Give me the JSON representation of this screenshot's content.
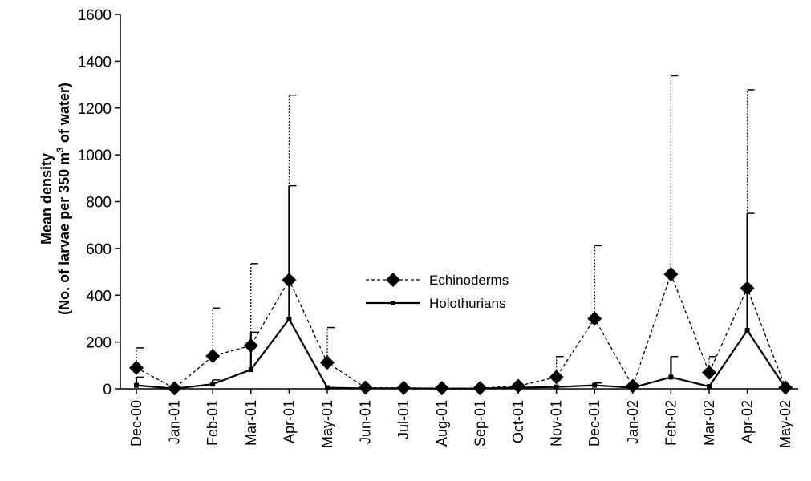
{
  "chart_data": {
    "type": "line",
    "categories": [
      "Dec-00",
      "Jan-01",
      "Feb-01",
      "Mar-01",
      "Apr-01",
      "May-01",
      "Jun-01",
      "Jul-01",
      "Aug-01",
      "Sep-01",
      "Oct-01",
      "Nov-01",
      "Dec-01",
      "Jan-02",
      "Feb-02",
      "Mar-02",
      "Apr-02",
      "May-02"
    ],
    "ylabel_line1": "Mean density",
    "ylabel_line2_prefix": "(No. of larvae per 350 m",
    "ylabel_superscript": "3",
    "ylabel_line2_suffix": " of water)",
    "ylim": [
      0,
      1600
    ],
    "yticks": [
      "0",
      "200",
      "400",
      "600",
      "800",
      "1000",
      "1200",
      "1400",
      "1600"
    ],
    "grid": false,
    "legend_position": "center",
    "series": [
      {
        "name": "Echinoderms",
        "style": "dashed",
        "marker": "diamond",
        "color": "#000000",
        "values": [
          90,
          2,
          140,
          185,
          465,
          112,
          5,
          4,
          3,
          3,
          12,
          50,
          300,
          12,
          490,
          70,
          430,
          5
        ],
        "error_upper": [
          175,
          null,
          345,
          535,
          1255,
          262,
          null,
          null,
          null,
          null,
          null,
          138,
          612,
          null,
          1338,
          138,
          1278,
          null
        ]
      },
      {
        "name": "Holothurians",
        "style": "solid",
        "marker": "square",
        "color": "#000000",
        "values": [
          15,
          1,
          20,
          82,
          298,
          5,
          2,
          2,
          1,
          1,
          5,
          8,
          15,
          5,
          50,
          10,
          250,
          3
        ],
        "error_upper": [
          50,
          null,
          38,
          242,
          868,
          null,
          null,
          null,
          null,
          null,
          null,
          null,
          25,
          null,
          138,
          null,
          750,
          null
        ]
      }
    ]
  }
}
